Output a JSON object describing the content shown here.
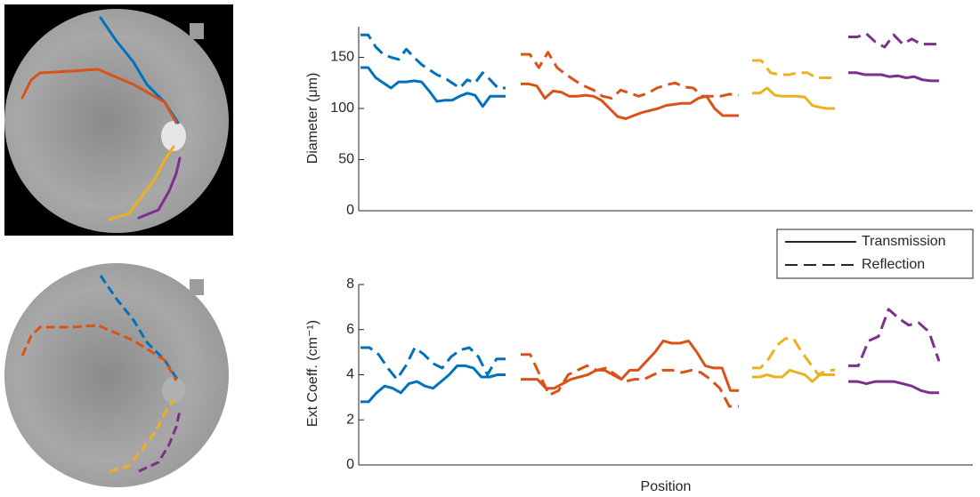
{
  "legend": [
    {
      "name": "Transmission",
      "dash": false
    },
    {
      "name": "Reflection",
      "dash": true
    }
  ],
  "chart_data": [
    {
      "type": "line",
      "y_label": "Diameter (μm)",
      "ylim": [
        0,
        180
      ],
      "yticks": [
        0,
        50,
        100,
        150
      ],
      "series": [
        {
          "segments": [
            {
              "color": "#0072BD",
              "values": [
                140,
                140,
                130,
                125,
                120,
                126,
                126,
                127,
                126,
                117,
                107,
                108,
                108,
                112,
                115,
                113,
                102,
                112,
                112,
                112
              ]
            },
            {
              "color": "#D95319",
              "values": [
                124,
                124,
                122,
                110,
                117,
                116,
                112,
                112,
                113,
                112,
                108,
                100,
                92,
                90,
                93,
                96,
                98,
                100,
                103,
                104,
                105,
                105,
                110,
                112,
                100,
                93,
                93,
                93
              ]
            },
            {
              "color": "#EDB120",
              "values": [
                115,
                115,
                120,
                113,
                112,
                112,
                112,
                111,
                103,
                101,
                100,
                100
              ]
            },
            {
              "color": "#7E2F8E",
              "values": [
                135,
                135,
                133,
                133,
                133,
                131,
                132,
                130,
                131,
                128,
                127,
                127
              ]
            }
          ]
        },
        {
          "segments": [
            {
              "color": "#0072BD",
              "values": [
                172,
                172,
                160,
                153,
                150,
                148,
                158,
                150,
                143,
                138,
                133,
                130,
                125,
                120,
                128,
                125,
                135,
                128,
                120,
                120
              ]
            },
            {
              "color": "#D95319",
              "values": [
                153,
                153,
                140,
                155,
                140,
                133,
                127,
                122,
                118,
                112,
                110,
                118,
                115,
                112,
                115,
                120,
                123,
                125,
                121,
                120,
                112,
                112,
                112,
                114,
                113
              ]
            },
            {
              "color": "#EDB120",
              "values": [
                147,
                147,
                135,
                133,
                133,
                135,
                135,
                130,
                130,
                130
              ]
            },
            {
              "color": "#7E2F8E",
              "values": [
                170,
                170,
                173,
                165,
                160,
                172,
                163,
                168,
                163,
                163,
                163
              ]
            }
          ]
        }
      ]
    },
    {
      "type": "line",
      "y_label": "Ext Coeff. (cm⁻¹)",
      "x_label": "Position",
      "ylim": [
        0,
        8
      ],
      "yticks": [
        0,
        2,
        4,
        6,
        8
      ],
      "series": [
        {
          "segments": [
            {
              "color": "#0072BD",
              "values": [
                2.8,
                2.8,
                3.2,
                3.5,
                3.4,
                3.2,
                3.6,
                3.7,
                3.5,
                3.4,
                3.7,
                4.0,
                4.4,
                4.4,
                4.3,
                3.9,
                3.9,
                4.0,
                4.0
              ]
            },
            {
              "color": "#D95319",
              "values": [
                3.8,
                3.8,
                3.8,
                3.4,
                3.4,
                3.6,
                3.8,
                3.9,
                4.0,
                4.2,
                4.2,
                4.0,
                3.8,
                4.2,
                4.2,
                4.6,
                5.0,
                5.5,
                5.4,
                5.4,
                5.5,
                5.0,
                4.4,
                4.3,
                4.3,
                3.3,
                3.3
              ]
            },
            {
              "color": "#EDB120",
              "values": [
                3.9,
                3.9,
                4.0,
                3.9,
                3.9,
                4.2,
                4.1,
                4.0,
                3.7,
                4.0,
                4.0,
                4.0
              ]
            },
            {
              "color": "#7E2F8E",
              "values": [
                3.7,
                3.7,
                3.6,
                3.7,
                3.7,
                3.7,
                3.6,
                3.5,
                3.3,
                3.2,
                3.2
              ]
            }
          ]
        },
        {
          "segments": [
            {
              "color": "#0072BD",
              "values": [
                5.2,
                5.2,
                4.9,
                4.3,
                3.8,
                4.4,
                5.2,
                4.9,
                4.5,
                4.3,
                4.8,
                5.1,
                5.2,
                4.8,
                4.0,
                4.7,
                4.7
              ]
            },
            {
              "color": "#D95319",
              "values": [
                4.9,
                4.9,
                4.0,
                3.1,
                3.3,
                4.0,
                4.2,
                4.4,
                4.2,
                4.3,
                4.0,
                3.7,
                3.8,
                3.8,
                4.0,
                4.2,
                4.2,
                4.1,
                4.2,
                4.1,
                3.8,
                3.4,
                2.6,
                2.6
              ]
            },
            {
              "color": "#EDB120",
              "values": [
                4.3,
                4.3,
                4.7,
                5.3,
                5.6,
                5.6,
                5.0,
                4.5,
                4.0,
                4.2,
                4.2
              ]
            },
            {
              "color": "#7E2F8E",
              "values": [
                4.4,
                4.4,
                5.5,
                5.7,
                6.9,
                6.5,
                6.2,
                6.3,
                5.9,
                4.6
              ]
            }
          ]
        }
      ]
    }
  ]
}
